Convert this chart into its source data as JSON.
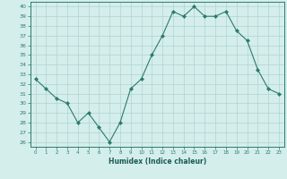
{
  "title": "",
  "xlabel": "Humidex (Indice chaleur)",
  "ylabel": "",
  "x": [
    0,
    1,
    2,
    3,
    4,
    5,
    6,
    7,
    8,
    9,
    10,
    11,
    12,
    13,
    14,
    15,
    16,
    17,
    18,
    19,
    20,
    21,
    22,
    23
  ],
  "y": [
    32.5,
    31.5,
    30.5,
    30.0,
    28.0,
    29.0,
    27.5,
    26.0,
    28.0,
    31.5,
    32.5,
    35.0,
    37.0,
    39.5,
    39.0,
    40.0,
    39.0,
    39.0,
    39.5,
    37.5,
    36.5,
    33.5,
    31.5,
    31.0
  ],
  "line_color": "#2d7a6e",
  "marker": "D",
  "marker_size": 2.0,
  "background_color": "#d4eeec",
  "grid_color": "#aed4d0",
  "axis_color": "#2d7a6e",
  "tick_color": "#2d7a6e",
  "label_color": "#1a5a52",
  "ylim": [
    26,
    40
  ],
  "yticks": [
    26,
    27,
    28,
    29,
    30,
    31,
    32,
    33,
    34,
    35,
    36,
    37,
    38,
    39,
    40
  ],
  "xlim": [
    -0.5,
    23.5
  ],
  "xticks": [
    0,
    1,
    2,
    3,
    4,
    5,
    6,
    7,
    8,
    9,
    10,
    11,
    12,
    13,
    14,
    15,
    16,
    17,
    18,
    19,
    20,
    21,
    22,
    23
  ]
}
